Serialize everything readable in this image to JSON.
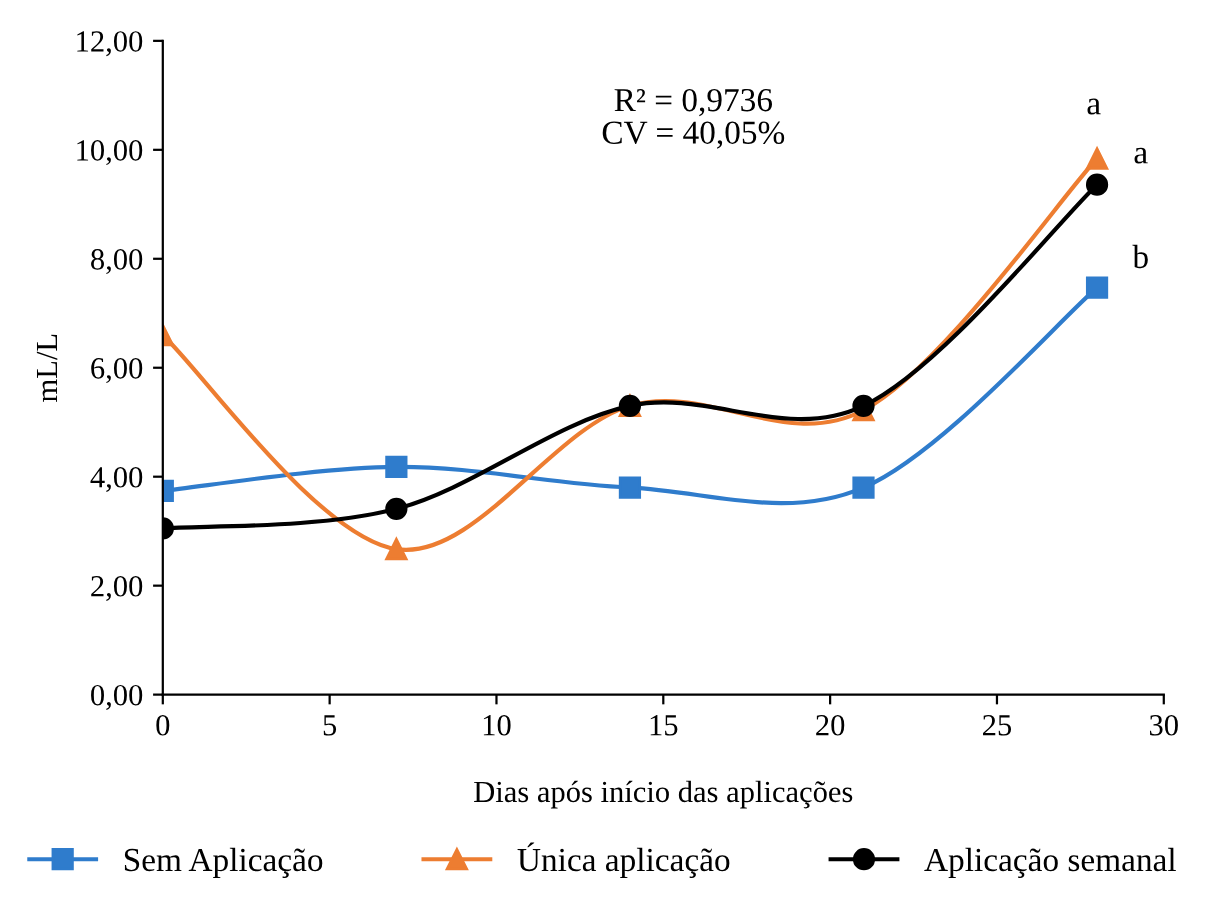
{
  "chart_data": {
    "type": "line",
    "xlabel": "Dias após início das aplicações",
    "ylabel": "mL/L",
    "x": [
      0,
      7,
      14,
      21,
      28
    ],
    "series": [
      {
        "name": "Sem Aplicação",
        "color": "#2f7ccc",
        "marker": "square",
        "values": [
          3.74,
          4.18,
          3.8,
          3.8,
          7.47
        ]
      },
      {
        "name": "Única aplicação",
        "color": "#ed7d31",
        "marker": "triangle",
        "values": [
          6.6,
          2.67,
          5.3,
          5.22,
          9.84
        ]
      },
      {
        "name": "Aplicação semanal",
        "color": "#000000",
        "marker": "circle",
        "values": [
          3.05,
          3.41,
          5.3,
          5.3,
          9.36
        ]
      }
    ],
    "xlim": [
      0,
      30
    ],
    "xticks": [
      0,
      5,
      10,
      15,
      20,
      25,
      30
    ],
    "ylim": [
      0,
      12
    ],
    "yticks": [
      {
        "value": 0,
        "label": "0,00"
      },
      {
        "value": 2,
        "label": "2,00"
      },
      {
        "value": 4,
        "label": "4,00"
      },
      {
        "value": 6,
        "label": "6,00"
      },
      {
        "value": 8,
        "label": "8,00"
      },
      {
        "value": 10,
        "label": "10,00"
      },
      {
        "value": 12,
        "label": "12,00"
      }
    ],
    "annotations": [
      "R² = 0,9736\nCV = 40,05%",
      "a",
      "a",
      "b"
    ],
    "grid": false,
    "legend": "bottom",
    "line_style": "solid"
  }
}
